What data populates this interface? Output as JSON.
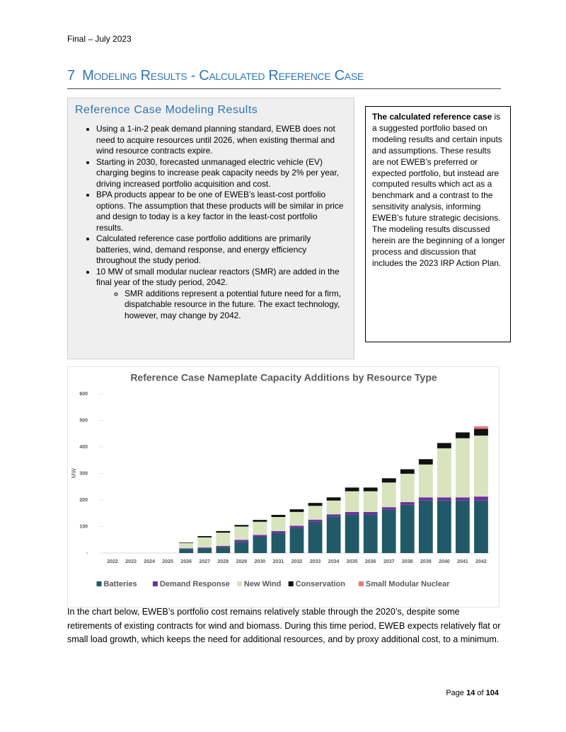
{
  "header": {
    "text": "Final – July 2023"
  },
  "section": {
    "number": "7",
    "title": "Modeling Results - Calculated Reference Case"
  },
  "summary_box": {
    "title": "Reference Case Modeling Results",
    "bullets": [
      "Using a 1-in-2 peak demand planning standard, EWEB does not need to acquire resources until 2026, when existing thermal and wind resource contracts expire.",
      "Starting in 2030, forecasted unmanaged electric vehicle (EV) charging begins to increase peak capacity needs by 2% per year, driving increased portfolio acquisition and cost.",
      "BPA products appear to be one of EWEB’s least-cost portfolio options. The assumption that these products will be similar in price and design to today is a key factor in the least-cost portfolio results.",
      "Calculated reference case portfolio additions are primarily batteries, wind, demand response, and energy efficiency throughout the study period.",
      "10 MW of small modular nuclear reactors (SMR) are added in the final year of the study period, 2042."
    ],
    "sub_bullet": "SMR additions represent a potential future need for a firm, dispatchable resource in the future. The exact technology, however, may change by 2042."
  },
  "side_box": {
    "lead": "The calculated reference case",
    "text": "is a suggested portfolio based on modeling results and certain inputs and assumptions. These results are not EWEB’s preferred or expected portfolio, but instead are computed results which act as a benchmark and a contrast to the sensitivity analysis, informing EWEB’s future strategic decisions. The modeling results discussed herein are the beginning of a longer process and discussion that includes the 2023 IRP Action Plan."
  },
  "chart_data": {
    "type": "stacked_bar",
    "title": "Reference Case Nameplate Capacity Additions by Resource Type",
    "y_label": "MW",
    "categories": [
      "2022",
      "2023",
      "2024",
      "2025",
      "2026",
      "2027",
      "2028",
      "2029",
      "2030",
      "2031",
      "2032",
      "2033",
      "2034",
      "2035",
      "2036",
      "2037",
      "2038",
      "2039",
      "2040",
      "2041",
      "2042"
    ],
    "series": [
      {
        "name": "Batteries",
        "color": "#215968",
        "values": [
          0,
          0,
          0,
          0,
          15,
          18,
          22,
          42,
          60,
          75,
          95,
          118,
          138,
          145,
          145,
          163,
          182,
          198,
          198,
          198,
          198
        ]
      },
      {
        "name": "Demand Response",
        "color": "#7030a0",
        "values": [
          0,
          0,
          0,
          0,
          3,
          3,
          5,
          8,
          8,
          8,
          8,
          8,
          8,
          10,
          10,
          10,
          10,
          12,
          12,
          12,
          15
        ]
      },
      {
        "name": "New Wind",
        "color": "#d7e4bd",
        "values": [
          0,
          0,
          0,
          0,
          20,
          38,
          50,
          50,
          50,
          53,
          52,
          52,
          52,
          78,
          78,
          93,
          107,
          124,
          185,
          223,
          230
        ]
      },
      {
        "name": "Conservation",
        "color": "#111111",
        "values": [
          0,
          0,
          0,
          0,
          2,
          5,
          6,
          6,
          7,
          8,
          10,
          11,
          12,
          14,
          14,
          16,
          17,
          20,
          20,
          22,
          25
        ]
      },
      {
        "name": "Small Modular Nuclear",
        "color": "#e6797b",
        "values": [
          0,
          0,
          0,
          0,
          0,
          0,
          0,
          0,
          0,
          0,
          0,
          0,
          0,
          0,
          0,
          0,
          0,
          0,
          0,
          0,
          10
        ]
      }
    ],
    "ylim": [
      0,
      600
    ],
    "yticks": [
      {
        "value": 0,
        "label": "-"
      },
      100,
      200,
      300,
      400,
      500,
      600
    ],
    "grid": false,
    "legend": "bottom"
  },
  "paragraph": "In the chart below, EWEB’s portfolio cost remains relatively stable through the 2020’s, despite some retirements of existing contracts for wind and biomass. During this time period, EWEB expects relatively flat or small load growth, which keeps the need for additional resources, and by proxy additional cost, to a minimum.",
  "footer": {
    "prefix": "Page",
    "page": "14",
    "of": "of",
    "total": "104"
  }
}
